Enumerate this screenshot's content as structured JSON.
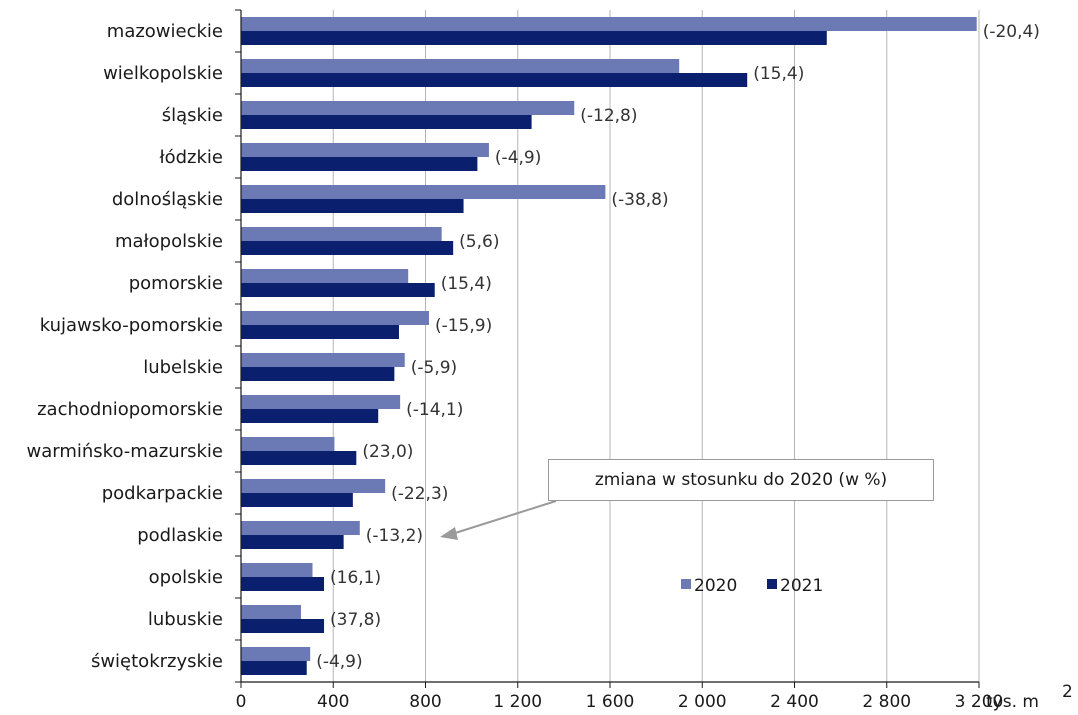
{
  "chart_data": {
    "type": "bar",
    "orientation": "horizontal",
    "categories": [
      "mazowieckie",
      "wielkopolskie",
      "śląskie",
      "łódzkie",
      "dolnośląskie",
      "małopolskie",
      "pomorskie",
      "kujawsko-pomorskie",
      "lubelskie",
      "zachodniopomorskie",
      "warmińsko-mazurskie",
      "podkarpackie",
      "podlaskie",
      "opolskie",
      "lubuskie",
      "świętokrzyskie"
    ],
    "series": [
      {
        "name": "2020",
        "color": "#6b79b4",
        "values": [
          3190,
          1900,
          1445,
          1075,
          1580,
          870,
          725,
          815,
          710,
          690,
          405,
          625,
          515,
          310,
          260,
          300
        ]
      },
      {
        "name": "2021",
        "color": "#0a1f6e",
        "values": [
          2540,
          2195,
          1260,
          1025,
          965,
          920,
          840,
          685,
          665,
          595,
          500,
          485,
          445,
          360,
          360,
          285
        ]
      }
    ],
    "change_labels": [
      "(-20,4)",
      "(15,4)",
      "(-12,8)",
      "(-4,9)",
      "(-38,8)",
      "(5,6)",
      "(15,4)",
      "(-15,9)",
      "(-5,9)",
      "(-14,1)",
      "(23,0)",
      "(-22,3)",
      "(-13,2)",
      "(16,1)",
      "(37,8)",
      "(-4,9)"
    ],
    "xlim": [
      0,
      3200
    ],
    "xticks": [
      0,
      400,
      800,
      1200,
      1600,
      2000,
      2400,
      2800,
      3200
    ],
    "xtick_labels": [
      "0",
      "400",
      "800",
      "1 200",
      "1 600",
      "2 000",
      "2 400",
      "2 800",
      "3 200"
    ],
    "xunit": "tys. m",
    "xunit_sup": "2",
    "grid": "vertical",
    "legend_position": "bottom-right",
    "annotation": "zmiana w stosunku do 2020 (w %)"
  }
}
